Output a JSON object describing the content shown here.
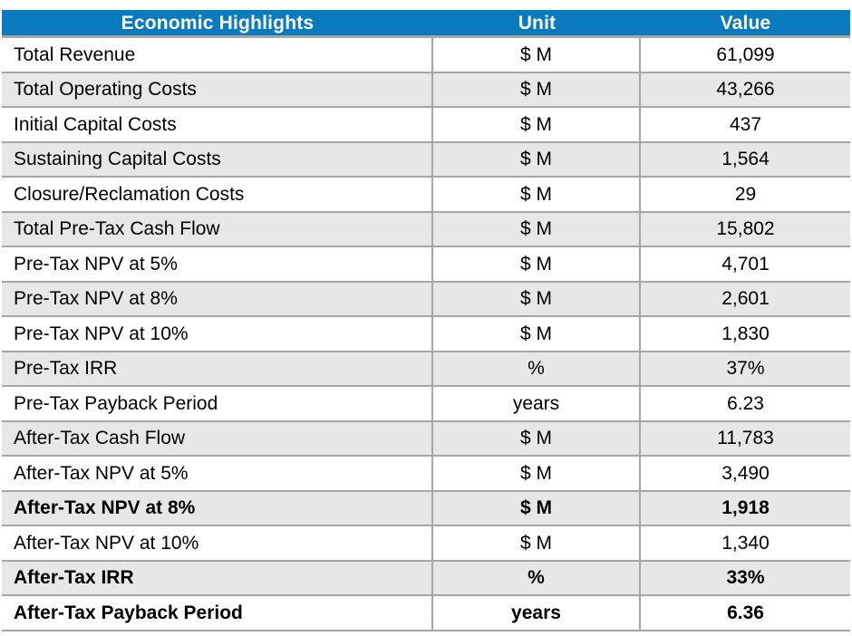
{
  "table": {
    "title": "Economic Highlights",
    "columns": [
      "Economic Highlights",
      "Unit",
      "Value"
    ],
    "rows": [
      {
        "label": "Total Revenue",
        "unit": "$ M",
        "value": "61,099",
        "shaded": false,
        "bold": false
      },
      {
        "label": "Total Operating Costs",
        "unit": "$ M",
        "value": "43,266",
        "shaded": true,
        "bold": false
      },
      {
        "label": "Initial Capital Costs",
        "unit": "$ M",
        "value": "437",
        "shaded": false,
        "bold": false
      },
      {
        "label": "Sustaining Capital Costs",
        "unit": "$ M",
        "value": "1,564",
        "shaded": true,
        "bold": false
      },
      {
        "label": "Closure/Reclamation Costs",
        "unit": "$ M",
        "value": "29",
        "shaded": false,
        "bold": false
      },
      {
        "label": "Total Pre-Tax Cash Flow",
        "unit": "$ M",
        "value": "15,802",
        "shaded": true,
        "bold": false
      },
      {
        "label": "Pre-Tax NPV at 5%",
        "unit": "$ M",
        "value": "4,701",
        "shaded": false,
        "bold": false
      },
      {
        "label": "Pre-Tax NPV at 8%",
        "unit": "$ M",
        "value": "2,601",
        "shaded": true,
        "bold": false
      },
      {
        "label": "Pre-Tax NPV at 10%",
        "unit": "$ M",
        "value": "1,830",
        "shaded": false,
        "bold": false
      },
      {
        "label": "Pre-Tax IRR",
        "unit": "%",
        "value": "37%",
        "shaded": true,
        "bold": false
      },
      {
        "label": "Pre-Tax Payback Period",
        "unit": "years",
        "value": "6.23",
        "shaded": false,
        "bold": false
      },
      {
        "label": "After-Tax Cash Flow",
        "unit": "$ M",
        "value": "11,783",
        "shaded": true,
        "bold": false
      },
      {
        "label": "After-Tax NPV at 5%",
        "unit": "$ M",
        "value": "3,490",
        "shaded": false,
        "bold": false
      },
      {
        "label": "After-Tax NPV at 8%",
        "unit": "$ M",
        "value": "1,918",
        "shaded": true,
        "bold": true
      },
      {
        "label": "After-Tax NPV at 10%",
        "unit": "$ M",
        "value": "1,340",
        "shaded": false,
        "bold": false
      },
      {
        "label": "After-Tax IRR",
        "unit": "%",
        "value": "33%",
        "shaded": true,
        "bold": true
      },
      {
        "label": "After-Tax Payback Period",
        "unit": "years",
        "value": "6.36",
        "shaded": false,
        "bold": true
      }
    ]
  },
  "colors": {
    "header_bg": "#0b7bc0",
    "header_text": "#ffffff",
    "shaded_row_bg": "#e7e7e7",
    "border": "#a6a6a6",
    "text": "#000000"
  }
}
